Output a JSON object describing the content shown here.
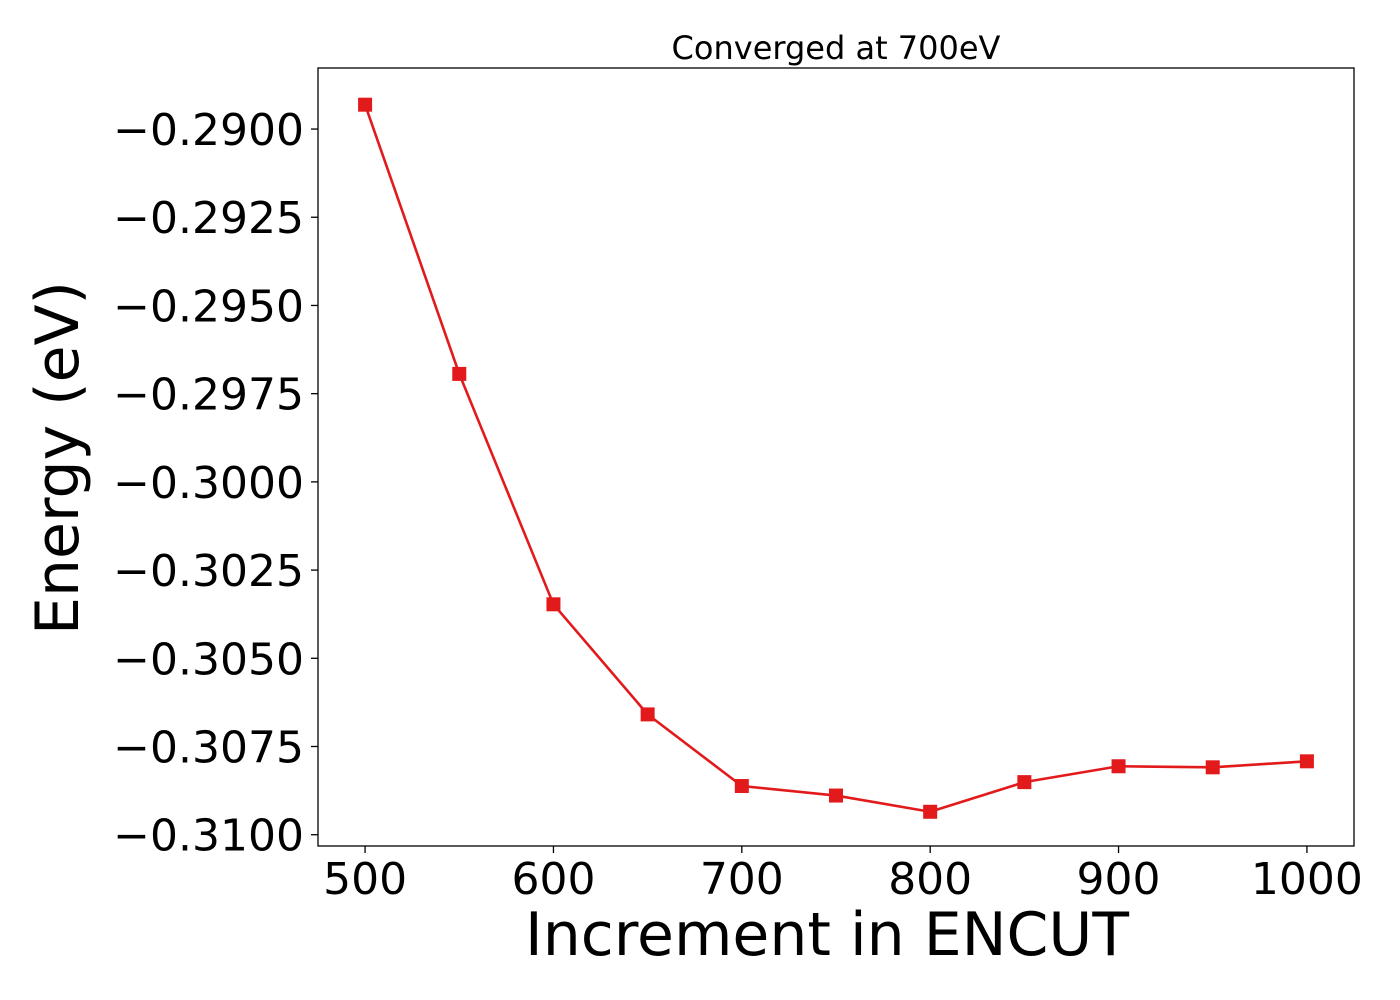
{
  "chart_data": {
    "type": "line",
    "title": "Converged at 700eV",
    "xlabel": "Increment in ENCUT",
    "ylabel": "Energy (eV)",
    "x": [
      500,
      550,
      600,
      650,
      700,
      750,
      800,
      850,
      900,
      950,
      1000
    ],
    "series": [
      {
        "values": [
          -0.28931,
          -0.29694,
          -0.30347,
          -0.30659,
          -0.30862,
          -0.30889,
          -0.30935,
          -0.30851,
          -0.30806,
          -0.30809,
          -0.30792
        ],
        "color": "#e31a1c",
        "marker": "square"
      }
    ],
    "xticks": [
      500,
      600,
      700,
      800,
      900,
      1000
    ],
    "xtick_labels": [
      "500",
      "600",
      "700",
      "800",
      "900",
      "1000"
    ],
    "yticks": [
      -0.29,
      -0.2925,
      -0.295,
      -0.2975,
      -0.3,
      -0.3025,
      -0.305,
      -0.3075,
      -0.31
    ],
    "ytick_labels": [
      "−0.2900",
      "−0.2925",
      "−0.2950",
      "−0.2975",
      "−0.3000",
      "−0.3025",
      "−0.3050",
      "−0.3075",
      "−0.3100"
    ],
    "xlim": [
      475,
      1025
    ],
    "ylim": [
      -0.31032,
      -0.28827
    ],
    "grid": false,
    "legend": "none"
  }
}
